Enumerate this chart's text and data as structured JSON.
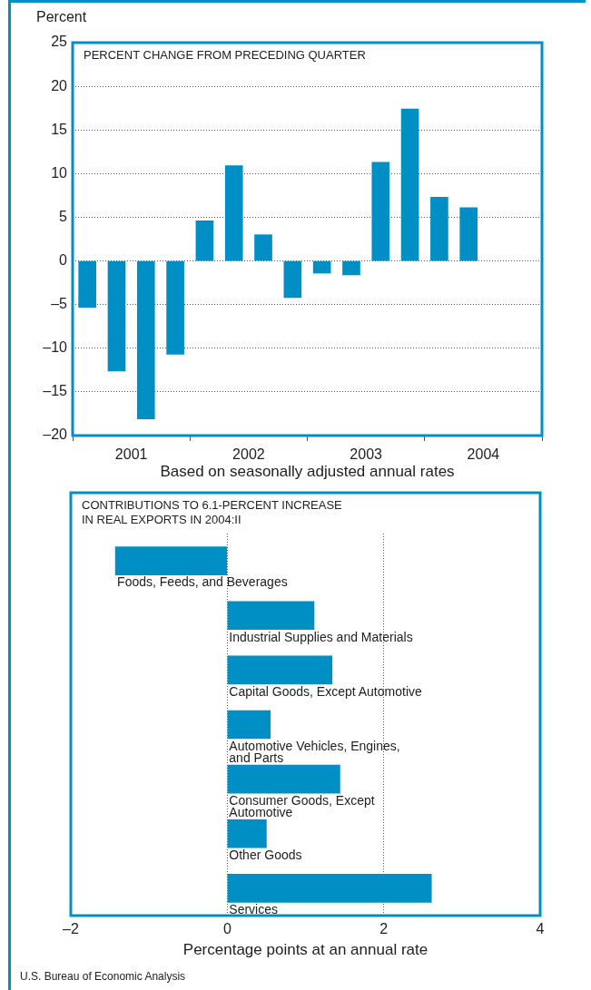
{
  "chart_data": [
    {
      "type": "bar",
      "title": "PERCENT CHANGE FROM PRECEDING QUARTER",
      "ylabel": "Percent",
      "xlabel": "Based on seasonally adjusted annual rates",
      "x": [
        2001.125,
        2001.375,
        2001.625,
        2001.875,
        2002.125,
        2002.375,
        2002.625,
        2002.875,
        2003.125,
        2003.375,
        2003.625,
        2003.875,
        2004.125,
        2004.375
      ],
      "values": [
        -5.3,
        -12.6,
        -18.1,
        -10.7,
        4.6,
        10.9,
        3.0,
        -4.2,
        -1.4,
        -1.6,
        11.3,
        17.4,
        7.3,
        6.1
      ],
      "color": "#008fc5",
      "xlim": [
        2001,
        2005
      ],
      "xticks": [
        {
          "value": 2001.5,
          "label": "2001"
        },
        {
          "value": 2002.5,
          "label": "2002"
        },
        {
          "value": 2003.5,
          "label": "2003"
        },
        {
          "value": 2004.5,
          "label": "2004"
        }
      ],
      "ylim": [
        -20,
        25
      ],
      "yticks": [
        {
          "value": -20,
          "label": "–20"
        },
        {
          "value": -15,
          "label": "–15"
        },
        {
          "value": -10,
          "label": "–10"
        },
        {
          "value": -5,
          "label": "–5"
        },
        0,
        5,
        10,
        15,
        20,
        25
      ],
      "grid": "y"
    },
    {
      "type": "bar",
      "orientation": "horizontal",
      "title": "CONTRIBUTIONS TO 6.1-PERCENT INCREASE IN REAL EXPORTS IN 2004:II",
      "xlabel": "Percentage points at an annual rate",
      "categories": [
        "Foods, Feeds, and Beverages",
        "Industrial Supplies and Materials",
        "Capital Goods, Except Automotive",
        "Automotive Vehicles, Engines, and Parts",
        "Consumer Goods, Except Automotive",
        "Other Goods",
        "Services"
      ],
      "values": [
        -1.43,
        1.11,
        1.34,
        0.55,
        1.44,
        0.5,
        2.61
      ],
      "color": "#008fc5",
      "xlim": [
        -2,
        4
      ],
      "xticks": [
        {
          "value": -2,
          "label": "–2"
        },
        0,
        2,
        4
      ],
      "grid": "x",
      "annotations": [
        "U.S. Bureau of Economic Analysis"
      ]
    }
  ]
}
